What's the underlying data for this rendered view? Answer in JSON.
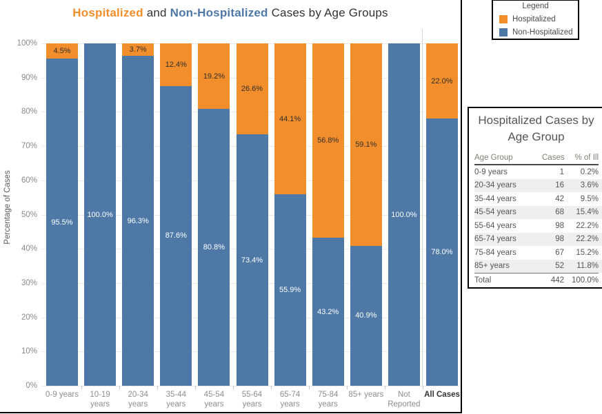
{
  "title": {
    "part1": "Hospitalized",
    "part2": " and ",
    "part3": "Non-Hospitalized",
    "part4": " Cases by Age Groups"
  },
  "legend": {
    "title": "Legend",
    "items": [
      {
        "label": "Hospitalized",
        "color": "#f28e2b"
      },
      {
        "label": "Non-Hospitalized",
        "color": "#4e79a7"
      }
    ]
  },
  "chart_data": {
    "type": "bar",
    "stacked": true,
    "units": "percent",
    "title": "Hospitalized and Non-Hospitalized Cases by Age Groups",
    "xlabel": "",
    "ylabel": "Percentage of Cases",
    "ylim": [
      0,
      100
    ],
    "ytick_labels": [
      "0%",
      "10%",
      "20%",
      "30%",
      "40%",
      "50%",
      "60%",
      "70%",
      "80%",
      "90%",
      "100%"
    ],
    "grid": true,
    "legend_position": "top-right",
    "categories": [
      "0-9 years",
      "10-19 years",
      "20-34 years",
      "35-44 years",
      "45-54 years",
      "55-64 years",
      "65-74 years",
      "75-84 years",
      "85+ years",
      "Not Reported",
      "All Cases"
    ],
    "category_label_lines": [
      [
        "0-9 years"
      ],
      [
        "10-19",
        "years"
      ],
      [
        "20-34",
        "years"
      ],
      [
        "35-44",
        "years"
      ],
      [
        "45-54",
        "years"
      ],
      [
        "55-64",
        "years"
      ],
      [
        "65-74",
        "years"
      ],
      [
        "75-84",
        "years"
      ],
      [
        "85+ years"
      ],
      [
        "Not",
        "Reported"
      ],
      [
        "All Cases"
      ]
    ],
    "series": [
      {
        "name": "Hospitalized",
        "color": "#f28e2b",
        "values": [
          4.5,
          0,
          3.7,
          12.4,
          19.2,
          26.6,
          44.1,
          56.8,
          59.1,
          0,
          22.0
        ]
      },
      {
        "name": "Non-Hospitalized",
        "color": "#4e79a7",
        "values": [
          95.5,
          100.0,
          96.3,
          87.6,
          80.8,
          73.4,
          55.9,
          43.2,
          40.9,
          100.0,
          78.0
        ]
      }
    ]
  },
  "table": {
    "title_lines": [
      "Hospitalized Cases by",
      "Age Group"
    ],
    "columns": [
      "Age Group",
      "Cases",
      "% of Ill"
    ],
    "rows": [
      [
        "0-9 years",
        "1",
        "0.2%"
      ],
      [
        "20-34 years",
        "16",
        "3.6%"
      ],
      [
        "35-44 years",
        "42",
        "9.5%"
      ],
      [
        "45-54 years",
        "68",
        "15.4%"
      ],
      [
        "55-64 years",
        "98",
        "22.2%"
      ],
      [
        "65-74 years",
        "98",
        "22.2%"
      ],
      [
        "75-84 years",
        "67",
        "15.2%"
      ],
      [
        "85+ years",
        "52",
        "11.8%"
      ]
    ],
    "total": [
      "Total",
      "442",
      "100.0%"
    ]
  }
}
